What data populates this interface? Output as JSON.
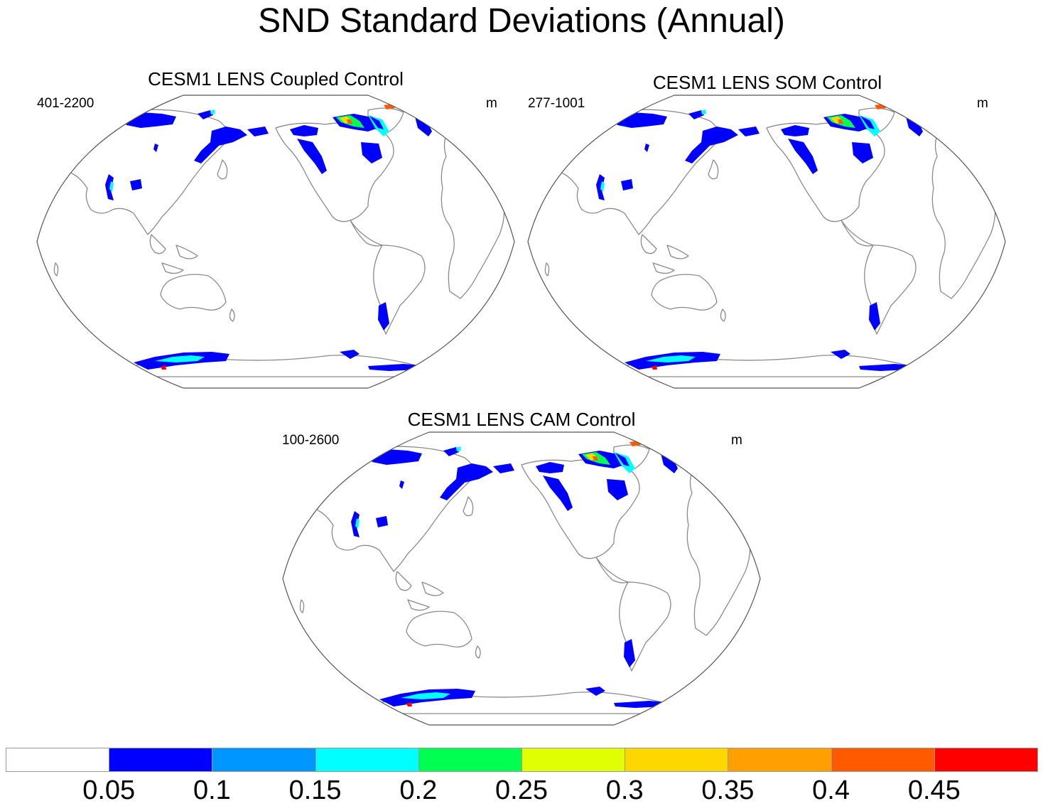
{
  "title": "SND Standard Deviations (Annual)",
  "panels": [
    {
      "id": "coupled",
      "title": "CESM1 LENS Coupled Control",
      "left_string": "401-2200",
      "right_string": "m"
    },
    {
      "id": "som",
      "title": "CESM1 LENS SOM Control",
      "left_string": "277-1001",
      "right_string": "m"
    },
    {
      "id": "cam",
      "title": "CESM1 LENS CAM Control",
      "left_string": "100-2600",
      "right_string": "m"
    }
  ],
  "colorbar": {
    "colors": [
      "#ffffff",
      "#0000ff",
      "#0096ff",
      "#00ffff",
      "#00ff50",
      "#e0ff00",
      "#ffd700",
      "#ff9f00",
      "#ff5a00",
      "#ff0000"
    ],
    "labels": [
      "0.05",
      "0.1",
      "0.15",
      "0.2",
      "0.25",
      "0.3",
      "0.35",
      "0.4",
      "0.45"
    ]
  }
}
